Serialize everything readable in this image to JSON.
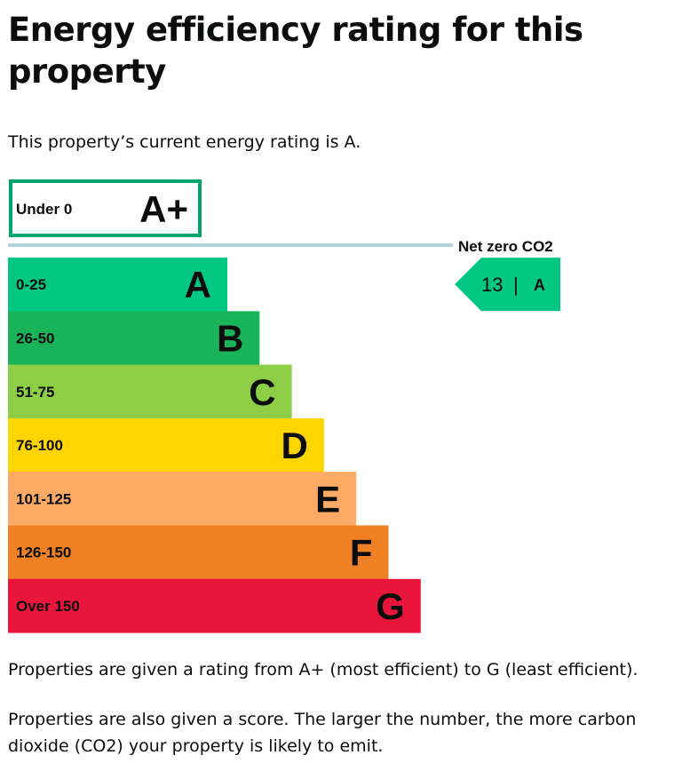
{
  "page": {
    "title": "Energy efficiency rating for this property",
    "intro": "This property’s current energy rating is A.",
    "footnote_1": "Properties are given a rating from A+ (most efficient) to G (least efficient).",
    "footnote_2": "Properties are also given a score. The larger the number, the more carbon dioxide (CO2) your property is likely to emit."
  },
  "chart_data": {
    "type": "bar",
    "title": "",
    "xlabel": "",
    "ylabel": "",
    "categories": [
      "A+",
      "A",
      "B",
      "C",
      "D",
      "E",
      "F",
      "G"
    ],
    "bands": [
      {
        "letter": "A+",
        "range": "Under 0",
        "color": "#ffffff",
        "border": "#00a56e",
        "outlined": true
      },
      {
        "letter": "A",
        "range": "0-25",
        "color": "#00c781"
      },
      {
        "letter": "B",
        "range": "26-50",
        "color": "#19b459"
      },
      {
        "letter": "C",
        "range": "51-75",
        "color": "#8dce46"
      },
      {
        "letter": "D",
        "range": "76-100",
        "color": "#ffd500"
      },
      {
        "letter": "E",
        "range": "101-125",
        "color": "#fcaa65"
      },
      {
        "letter": "F",
        "range": "126-150",
        "color": "#ef8023"
      },
      {
        "letter": "G",
        "range": "Over 150",
        "color": "#e9153b"
      }
    ],
    "divider": {
      "label": "Net zero CO2",
      "color": "#b1d2df"
    },
    "current": {
      "score": "13",
      "separator": "|",
      "letter": "A",
      "color": "#00c781"
    }
  }
}
